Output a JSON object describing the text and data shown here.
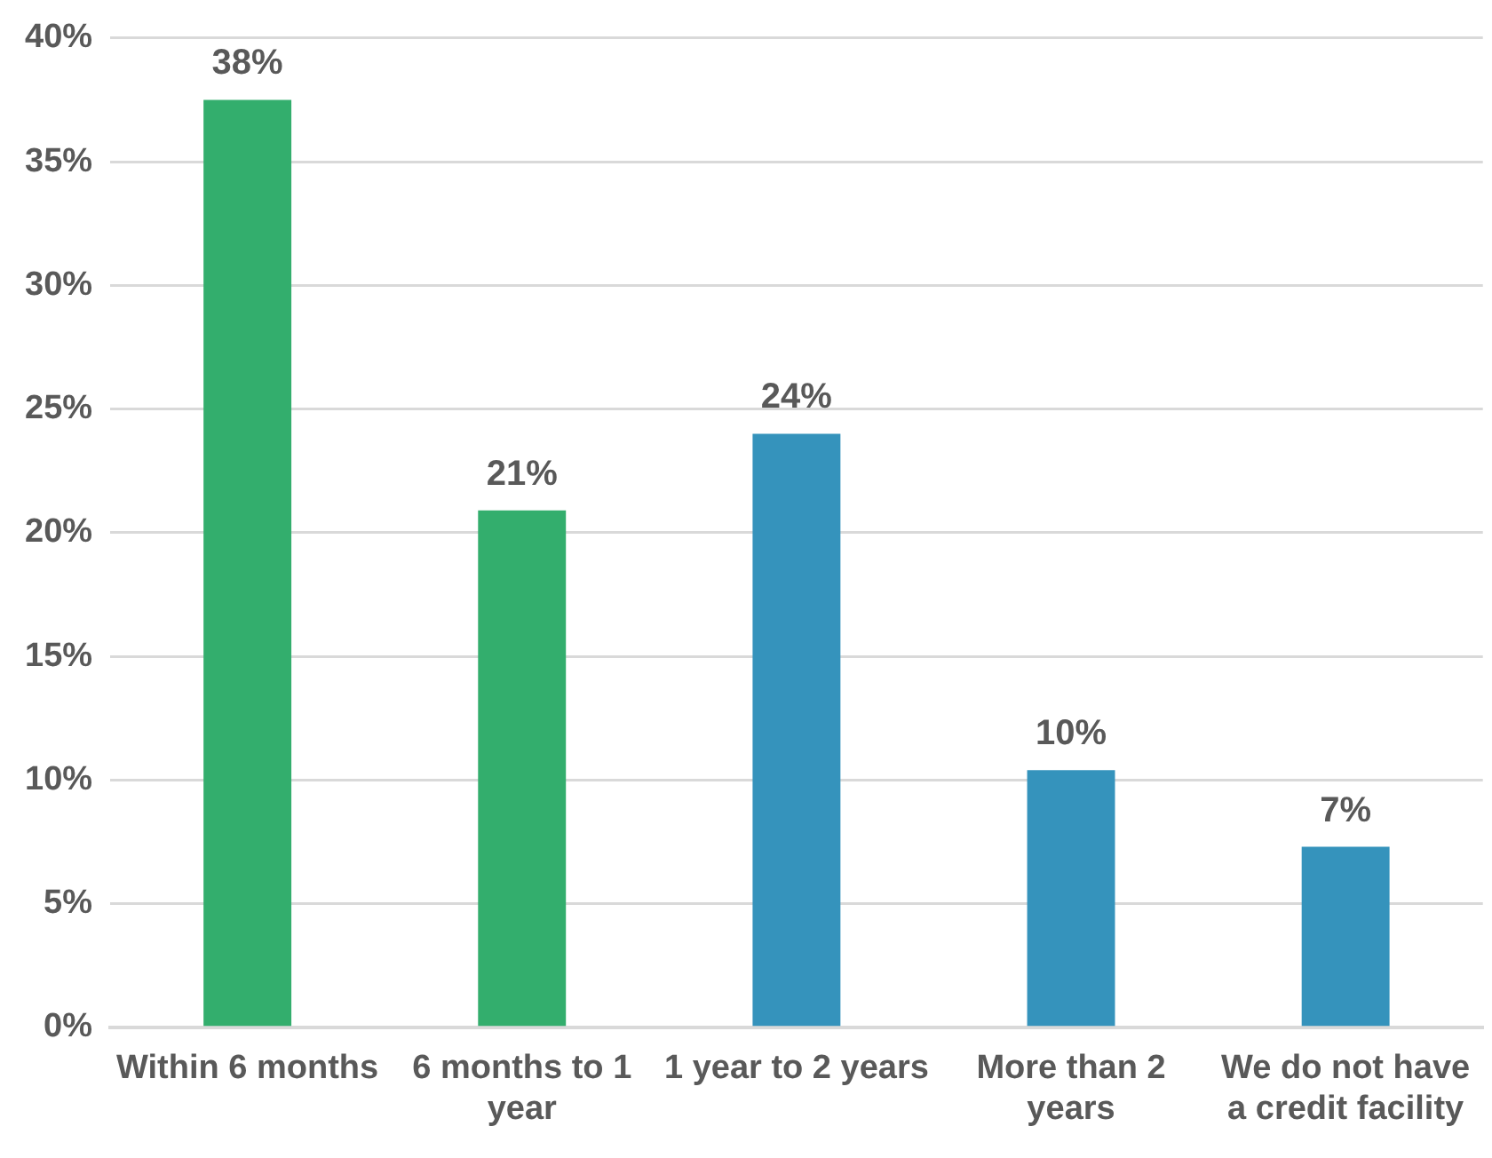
{
  "chart_data": {
    "type": "bar",
    "categories": [
      "Within 6 months",
      "6 months to 1 year",
      "1 year to 2 years",
      "More than 2 years",
      "We do not have a credit facility"
    ],
    "values": [
      37.5,
      20.9,
      24.0,
      10.4,
      7.3
    ],
    "colors": [
      "#33ae6d",
      "#33ae6d",
      "#3593bc",
      "#3593bc",
      "#3593bc"
    ],
    "value_labels": [
      "38%",
      "21%",
      "24%",
      "10%",
      "7%"
    ],
    "ylim": [
      0,
      40
    ],
    "yticks": [
      {
        "value": 0,
        "label": "0%"
      },
      {
        "value": 5,
        "label": "5%"
      },
      {
        "value": 10,
        "label": "10%"
      },
      {
        "value": 15,
        "label": "15%"
      },
      {
        "value": 20,
        "label": "20%"
      },
      {
        "value": 25,
        "label": "25%"
      },
      {
        "value": 30,
        "label": "30%"
      },
      {
        "value": 35,
        "label": "35%"
      },
      {
        "value": 40,
        "label": "40%"
      }
    ],
    "grid": "y",
    "legend": false
  }
}
